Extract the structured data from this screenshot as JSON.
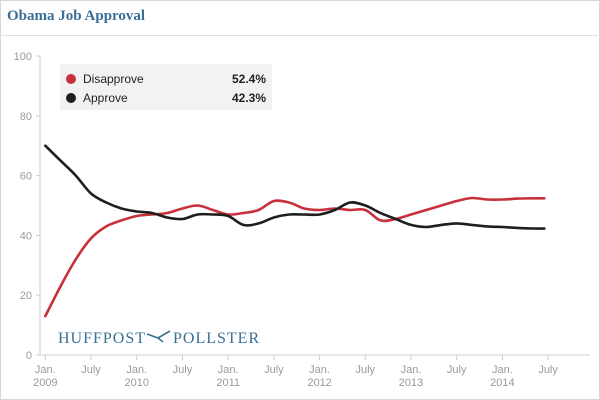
{
  "chart_data": {
    "type": "line",
    "title": "Obama Job Approval",
    "ylim": [
      0,
      100
    ],
    "yticks": [
      "0",
      "20",
      "40",
      "60",
      "80",
      "100"
    ],
    "x_ticks": [
      {
        "t": 0,
        "line1": "Jan.",
        "line2": "2009"
      },
      {
        "t": 6,
        "line1": "July",
        "line2": ""
      },
      {
        "t": 12,
        "line1": "Jan.",
        "line2": "2010"
      },
      {
        "t": 18,
        "line1": "July",
        "line2": ""
      },
      {
        "t": 24,
        "line1": "Jan.",
        "line2": "2011"
      },
      {
        "t": 30,
        "line1": "July",
        "line2": ""
      },
      {
        "t": 36,
        "line1": "Jan.",
        "line2": "2012"
      },
      {
        "t": 42,
        "line1": "July",
        "line2": ""
      },
      {
        "t": 48,
        "line1": "Jan.",
        "line2": "2013"
      },
      {
        "t": 54,
        "line1": "July",
        "line2": ""
      },
      {
        "t": 60,
        "line1": "Jan.",
        "line2": "2014"
      },
      {
        "t": 66,
        "line1": "July",
        "line2": ""
      }
    ],
    "xlim": [
      -0.7,
      71.5
    ],
    "grid": false,
    "legend_position": "top-left",
    "series": [
      {
        "name": "Disapprove",
        "color": "#c8313c",
        "latest": "52.4%",
        "points": [
          [
            0,
            13
          ],
          [
            2,
            23
          ],
          [
            4,
            32
          ],
          [
            6,
            39
          ],
          [
            8,
            43
          ],
          [
            10,
            45
          ],
          [
            12,
            46.5
          ],
          [
            14,
            47
          ],
          [
            16,
            47.5
          ],
          [
            18,
            49
          ],
          [
            20,
            50
          ],
          [
            22,
            48.5
          ],
          [
            24,
            47
          ],
          [
            26,
            47.5
          ],
          [
            28,
            48.5
          ],
          [
            30,
            51.5
          ],
          [
            32,
            51
          ],
          [
            34,
            49
          ],
          [
            36,
            48.5
          ],
          [
            38,
            49
          ],
          [
            40,
            48.5
          ],
          [
            42,
            48.5
          ],
          [
            44,
            45
          ],
          [
            46,
            45.5
          ],
          [
            48,
            47
          ],
          [
            50,
            48.5
          ],
          [
            52,
            50
          ],
          [
            54,
            51.5
          ],
          [
            56,
            52.5
          ],
          [
            58,
            52
          ],
          [
            60,
            52
          ],
          [
            62,
            52.3
          ],
          [
            64,
            52.4
          ],
          [
            65.5,
            52.4
          ]
        ]
      },
      {
        "name": "Approve",
        "color": "#1e1e1e",
        "latest": "42.3%",
        "points": [
          [
            0,
            70
          ],
          [
            2,
            65
          ],
          [
            4,
            60
          ],
          [
            6,
            54
          ],
          [
            8,
            51
          ],
          [
            10,
            49
          ],
          [
            12,
            48
          ],
          [
            14,
            47.5
          ],
          [
            16,
            46
          ],
          [
            18,
            45.5
          ],
          [
            20,
            47
          ],
          [
            22,
            47
          ],
          [
            24,
            46.5
          ],
          [
            26,
            43.5
          ],
          [
            28,
            44
          ],
          [
            30,
            46
          ],
          [
            32,
            47
          ],
          [
            34,
            47
          ],
          [
            36,
            47
          ],
          [
            38,
            48.5
          ],
          [
            40,
            51
          ],
          [
            42,
            50
          ],
          [
            44,
            47.5
          ],
          [
            46,
            45.5
          ],
          [
            48,
            43.5
          ],
          [
            50,
            42.8
          ],
          [
            52,
            43.5
          ],
          [
            54,
            44
          ],
          [
            56,
            43.5
          ],
          [
            58,
            43
          ],
          [
            60,
            42.8
          ],
          [
            62,
            42.5
          ],
          [
            64,
            42.3
          ],
          [
            65.5,
            42.3
          ]
        ]
      }
    ]
  },
  "brand": {
    "left": "HUFFPOST",
    "right": "POLLSTER"
  },
  "colors": {
    "title": "#3a6f95",
    "axis": "#cfcfcf",
    "legend_bg": "#f2f2f2"
  }
}
